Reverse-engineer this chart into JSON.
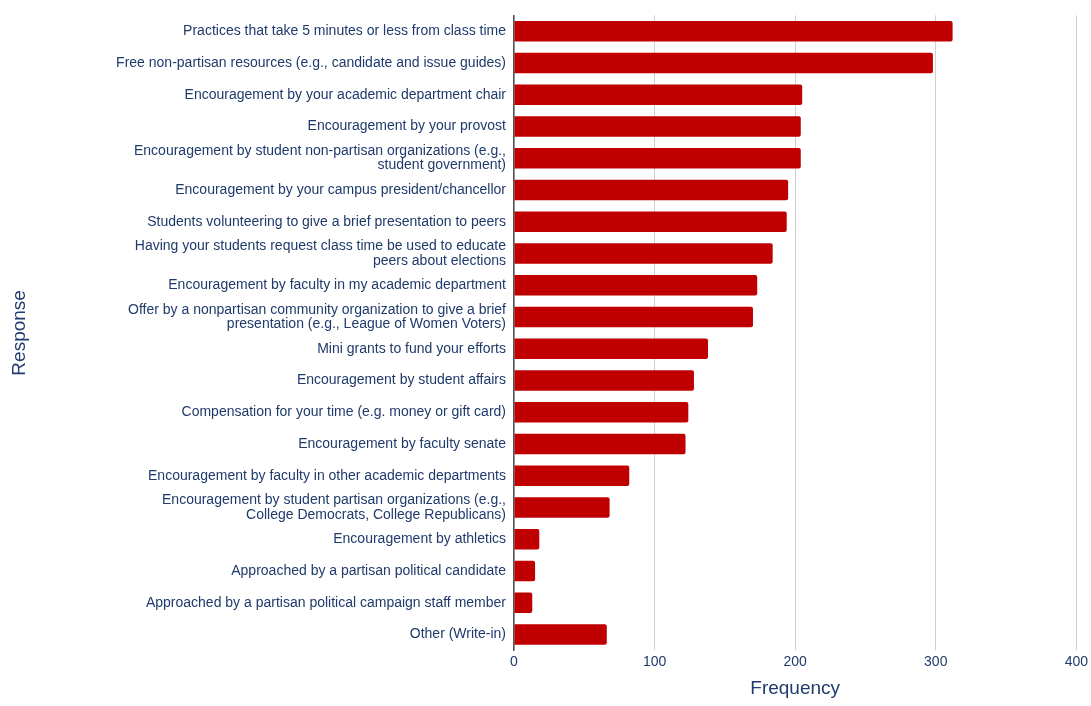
{
  "chart_data": {
    "type": "bar",
    "orientation": "horizontal",
    "xlabel": "Frequency",
    "ylabel": "Response",
    "categories": [
      "Practices that take 5 minutes or less from class time",
      "Free non-partisan resources (e.g., candidate and issue guides)",
      "Encouragement by your academic department chair",
      "Encouragement by your provost",
      "Encouragement by student non-partisan organizations (e.g., student government)",
      "Encouragement by your campus president/chancellor",
      "Students volunteering to give a brief presentation to peers",
      "Having your students request class time be used to educate peers about elections",
      "Encouragement by faculty in my academic department",
      "Offer by a nonpartisan community organization to give a brief presentation (e.g., League of Women Voters)",
      "Mini grants to fund your efforts",
      "Encouragement by student affairs",
      "Compensation for your time (e.g. money or gift card)",
      "Encouragement by faculty senate",
      "Encouragement by faculty in other academic departments",
      "Encouragement by student partisan organizations (e.g., College Democrats, College Republicans)",
      "Encouragement by athletics",
      "Approached by a partisan political candidate",
      "Approached by a partisan political campaign staff member",
      "Other (Write-in)"
    ],
    "values": [
      312,
      298,
      205,
      204,
      204,
      195,
      194,
      184,
      173,
      170,
      138,
      128,
      124,
      122,
      82,
      68,
      18,
      15,
      13,
      66
    ],
    "color": "#c00000",
    "xlim": [
      0,
      400
    ],
    "xticks": [
      0,
      100,
      200,
      300,
      400
    ],
    "grid": "x",
    "legend": false
  }
}
